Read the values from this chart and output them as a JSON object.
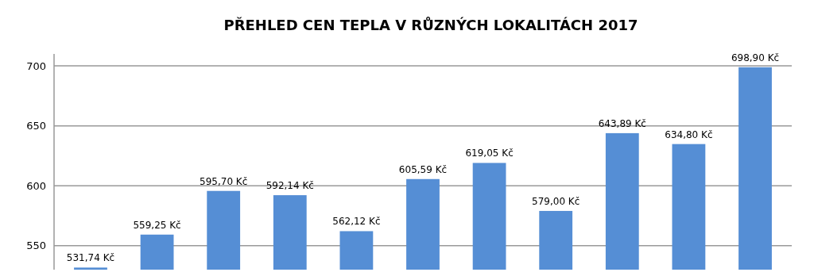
{
  "chart_data": {
    "type": "bar",
    "title": "PŘEHLED CEN TEPLA V RŮZNÝCH LOKALITÁCH 2017",
    "categories": [
      null,
      null,
      null,
      null,
      null,
      null,
      null,
      null,
      null,
      null,
      null
    ],
    "values": [
      531.74,
      559.25,
      595.7,
      592.14,
      562.12,
      605.59,
      619.05,
      579.0,
      643.89,
      634.8,
      698.9
    ],
    "value_labels": [
      "531,74 Kč",
      "559,25 Kč",
      "595,70 Kč",
      "592,14 Kč",
      "562,12 Kč",
      "605,59 Kč",
      "619,05 Kč",
      "579,00 Kč",
      "643,89 Kč",
      "634,80 Kč",
      "698,90 Kč"
    ],
    "color": "#558ed5",
    "ylim": [
      530,
      710
    ],
    "yticks": [
      550,
      600,
      650,
      700
    ],
    "grid": "y"
  }
}
